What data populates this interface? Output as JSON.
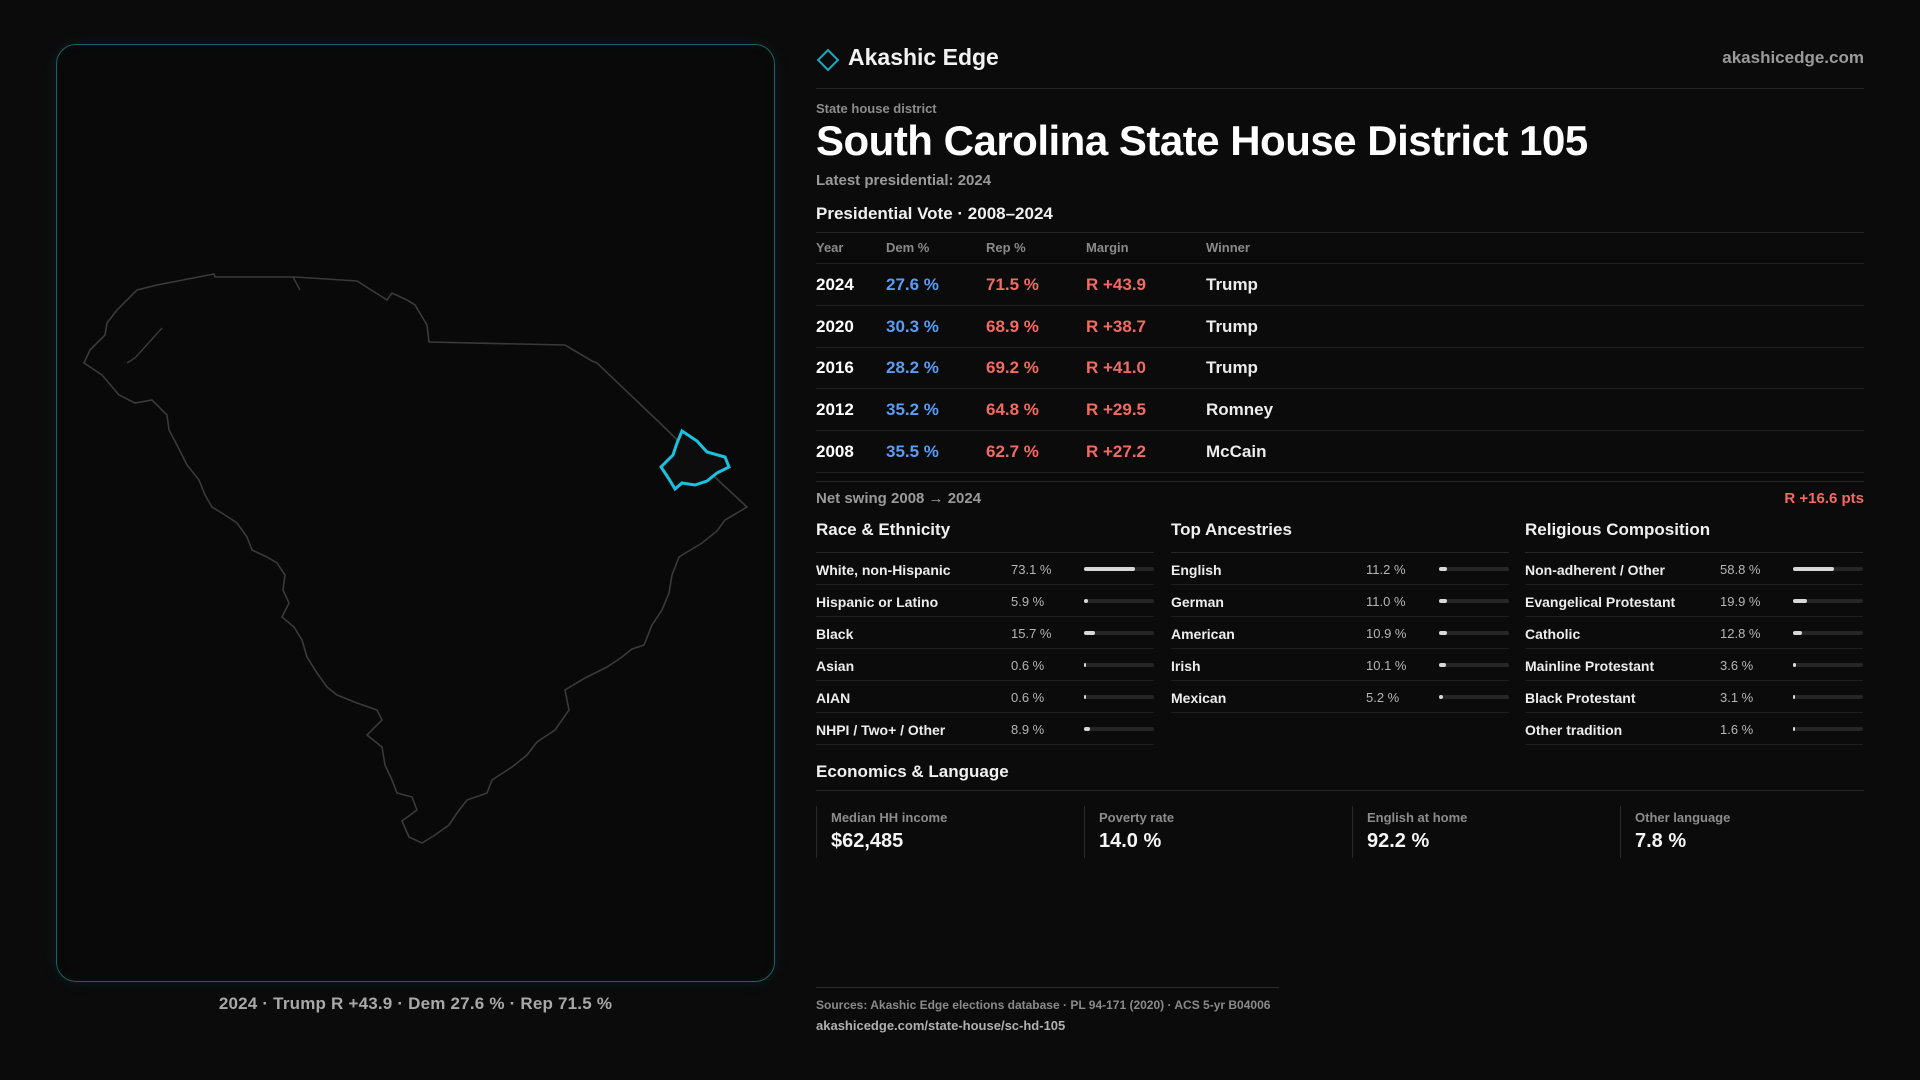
{
  "map": {
    "caption": "2024 · Trump R +43.9 · Dem 27.6 % · Rep 71.5 %",
    "state_outline_color": "#3a3a3a",
    "district_highlight_color": "#19c3df"
  },
  "header": {
    "brand": "Akashic Edge",
    "site": "akashicedge.com",
    "kicker": "State house district",
    "title": "South Carolina State House District 105",
    "subtitle": "Latest presidential: 2024"
  },
  "presidential": {
    "heading": "Presidential Vote · 2008–2024",
    "columns": {
      "year": "Year",
      "dem": "Dem %",
      "rep": "Rep %",
      "margin": "Margin",
      "winner": "Winner"
    },
    "rows": [
      {
        "year": "2024",
        "dem": "27.6 %",
        "rep": "71.5 %",
        "margin": "R +43.9",
        "winner": "Trump"
      },
      {
        "year": "2020",
        "dem": "30.3 %",
        "rep": "68.9 %",
        "margin": "R +38.7",
        "winner": "Trump"
      },
      {
        "year": "2016",
        "dem": "28.2 %",
        "rep": "69.2 %",
        "margin": "R +41.0",
        "winner": "Trump"
      },
      {
        "year": "2012",
        "dem": "35.2 %",
        "rep": "64.8 %",
        "margin": "R +29.5",
        "winner": "Romney"
      },
      {
        "year": "2008",
        "dem": "35.5 %",
        "rep": "62.7 %",
        "margin": "R +27.2",
        "winner": "McCain"
      }
    ],
    "swing_label": "Net swing 2008 → 2024",
    "swing_value": "R +16.6 pts",
    "dem_color": "#5a9cf5",
    "rep_color": "#f26a62"
  },
  "race": {
    "heading": "Race & Ethnicity",
    "items": [
      {
        "label": "White, non-Hispanic",
        "value": "73.1 %",
        "pct": 73.1
      },
      {
        "label": "Hispanic or Latino",
        "value": "5.9 %",
        "pct": 5.9
      },
      {
        "label": "Black",
        "value": "15.7 %",
        "pct": 15.7
      },
      {
        "label": "Asian",
        "value": "0.6 %",
        "pct": 0.6
      },
      {
        "label": "AIAN",
        "value": "0.6 %",
        "pct": 0.6
      },
      {
        "label": "NHPI / Two+ / Other",
        "value": "8.9 %",
        "pct": 8.9
      }
    ]
  },
  "ancestry": {
    "heading": "Top Ancestries",
    "items": [
      {
        "label": "English",
        "value": "11.2 %",
        "pct": 11.2
      },
      {
        "label": "German",
        "value": "11.0 %",
        "pct": 11.0
      },
      {
        "label": "American",
        "value": "10.9 %",
        "pct": 10.9
      },
      {
        "label": "Irish",
        "value": "10.1 %",
        "pct": 10.1
      },
      {
        "label": "Mexican",
        "value": "5.2 %",
        "pct": 5.2
      }
    ]
  },
  "religion": {
    "heading": "Religious Composition",
    "items": [
      {
        "label": "Non-adherent / Other",
        "value": "58.8 %",
        "pct": 58.8
      },
      {
        "label": "Evangelical Protestant",
        "value": "19.9 %",
        "pct": 19.9
      },
      {
        "label": "Catholic",
        "value": "12.8 %",
        "pct": 12.8
      },
      {
        "label": "Mainline Protestant",
        "value": "3.6 %",
        "pct": 3.6
      },
      {
        "label": "Black Protestant",
        "value": "3.1 %",
        "pct": 3.1
      },
      {
        "label": "Other tradition",
        "value": "1.6 %",
        "pct": 1.6
      }
    ]
  },
  "economics": {
    "heading": "Economics & Language",
    "stats": [
      {
        "label": "Median HH income",
        "value": "$62,485"
      },
      {
        "label": "Poverty rate",
        "value": "14.0 %"
      },
      {
        "label": "English at home",
        "value": "92.2 %"
      },
      {
        "label": "Other language",
        "value": "7.8 %"
      }
    ]
  },
  "footer": {
    "sources": "Sources: Akashic Edge elections database · PL 94-171 (2020) · ACS 5-yr B04006",
    "url": "akashicedge.com/state-house/sc-hd-105"
  }
}
